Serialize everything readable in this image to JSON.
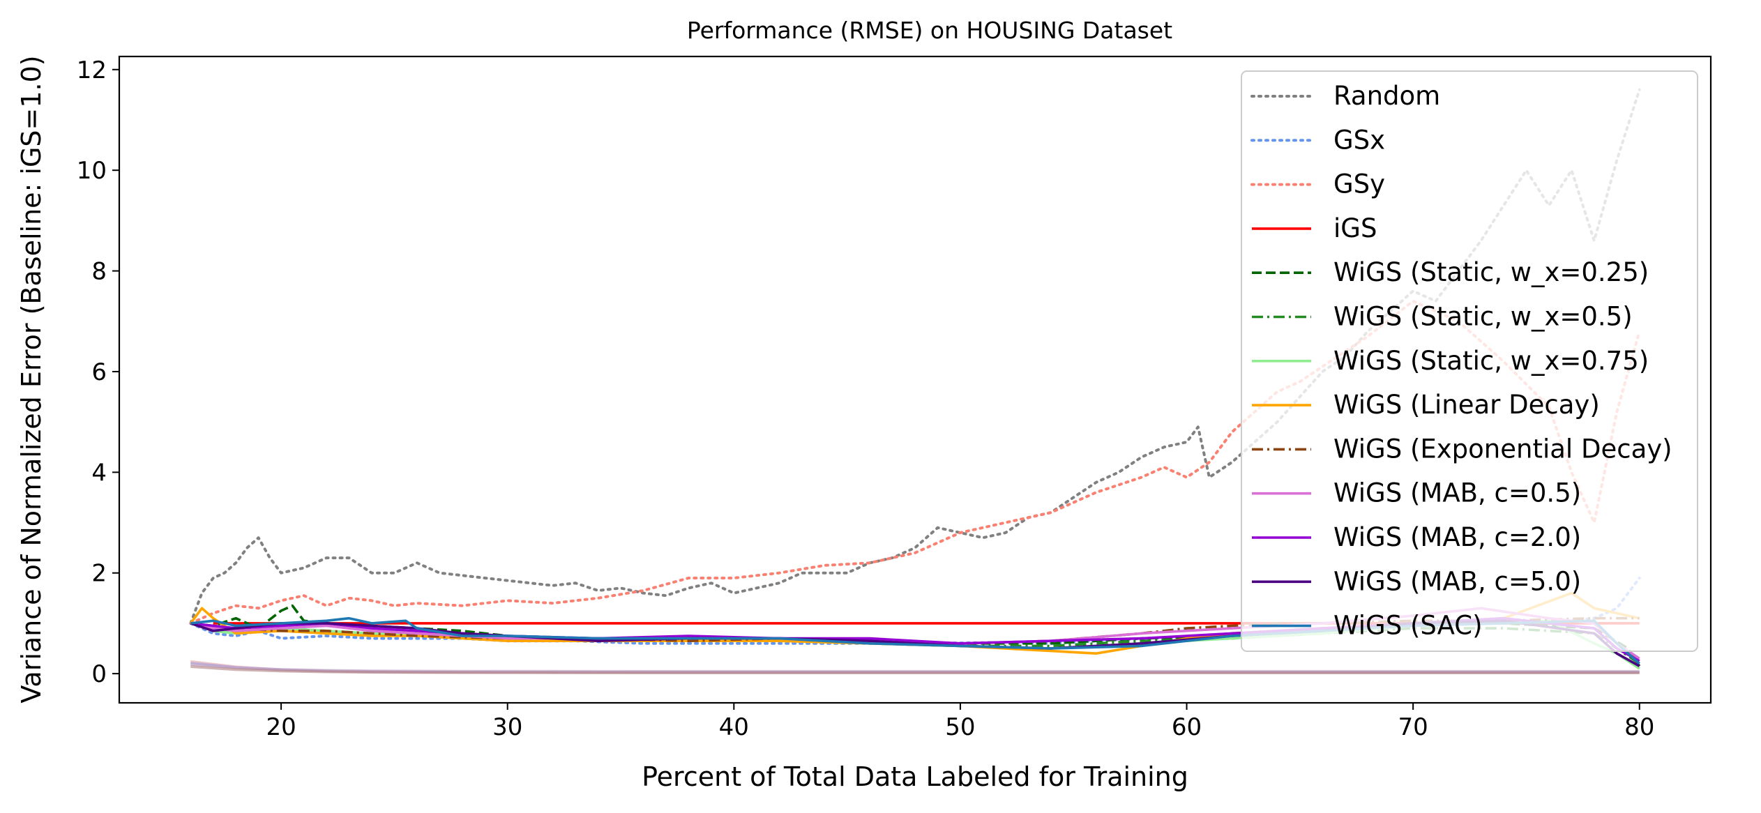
{
  "chart_data": {
    "type": "line",
    "title": "Performance (RMSE) on HOUSING Dataset",
    "xlabel": "Percent of Total Data Labeled for Training",
    "ylabel": "Variance of Normalized Error (Baseline: iGS=1.0)",
    "xlim": [
      12.85,
      83.15
    ],
    "ylim": [
      -0.58,
      12.26
    ],
    "xticks": [
      20,
      30,
      40,
      50,
      60,
      70,
      80
    ],
    "xtick_labels": [
      "20",
      "30",
      "40",
      "50",
      "60",
      "70",
      "80"
    ],
    "yticks": [
      0,
      2,
      4,
      6,
      8,
      10,
      12
    ],
    "ytick_labels": [
      "0",
      "2",
      "4",
      "6",
      "8",
      "10",
      "12"
    ],
    "grid": false,
    "legend_position": "upper right",
    "series": [
      {
        "name": "Random",
        "color": "#808080",
        "style": "dotted",
        "x": [
          16,
          16.5,
          17,
          17.5,
          18,
          18.5,
          19,
          19.5,
          20,
          21,
          22,
          23,
          24,
          25,
          26,
          27,
          28,
          29,
          30,
          31,
          32,
          33,
          34,
          35,
          36,
          37,
          38,
          39,
          40,
          41,
          42,
          43,
          44,
          45,
          46,
          47,
          48,
          49,
          50,
          51,
          52,
          53,
          54,
          55,
          56,
          57,
          58,
          59,
          60,
          60.5,
          61,
          62,
          63,
          64,
          65,
          66,
          67,
          68,
          69,
          70,
          71,
          72,
          73,
          74,
          75,
          76,
          77,
          78,
          79,
          80
        ],
        "y": [
          1.0,
          1.6,
          1.9,
          2.0,
          2.2,
          2.5,
          2.7,
          2.3,
          2.0,
          2.1,
          2.3,
          2.3,
          2.0,
          2.0,
          2.2,
          2.0,
          1.95,
          1.9,
          1.85,
          1.8,
          1.75,
          1.8,
          1.65,
          1.7,
          1.6,
          1.55,
          1.7,
          1.8,
          1.6,
          1.7,
          1.8,
          2.0,
          2.0,
          2.0,
          2.2,
          2.3,
          2.5,
          2.9,
          2.8,
          2.7,
          2.8,
          3.1,
          3.2,
          3.5,
          3.8,
          4.0,
          4.3,
          4.5,
          4.6,
          4.9,
          3.9,
          4.2,
          4.6,
          5.0,
          5.5,
          6.0,
          6.3,
          6.8,
          7.2,
          7.6,
          7.4,
          8.0,
          8.6,
          9.3,
          10.0,
          9.3,
          10.0,
          8.6,
          10.2,
          11.6
        ]
      },
      {
        "name": "GSx",
        "color": "#6495ED",
        "style": "dotted",
        "x": [
          16,
          17,
          18,
          19,
          20,
          22,
          24,
          26,
          28,
          30,
          33,
          36,
          40,
          44,
          48,
          52,
          54,
          56,
          58,
          60,
          62,
          64,
          66,
          68,
          70,
          72,
          74,
          76,
          78,
          79,
          80
        ],
        "y": [
          1.0,
          0.8,
          0.75,
          0.85,
          0.7,
          0.75,
          0.7,
          0.7,
          0.7,
          0.65,
          0.65,
          0.6,
          0.6,
          0.6,
          0.6,
          0.62,
          0.6,
          0.65,
          0.7,
          0.72,
          0.8,
          0.85,
          0.9,
          0.95,
          1.0,
          1.05,
          1.1,
          1.0,
          1.1,
          1.3,
          1.9
        ]
      },
      {
        "name": "GSy",
        "color": "#FA8072",
        "style": "dotted",
        "x": [
          16,
          17,
          18,
          19,
          20,
          21,
          22,
          23,
          24,
          25,
          26,
          28,
          30,
          32,
          34,
          36,
          38,
          40,
          42,
          44,
          46,
          48,
          50,
          52,
          54,
          56,
          58,
          59,
          60,
          61,
          62,
          63,
          64,
          65,
          66,
          68,
          70,
          72,
          74,
          76,
          77,
          78,
          79,
          80
        ],
        "y": [
          1.0,
          1.2,
          1.35,
          1.3,
          1.45,
          1.55,
          1.35,
          1.5,
          1.45,
          1.35,
          1.4,
          1.35,
          1.45,
          1.4,
          1.5,
          1.65,
          1.9,
          1.9,
          2.0,
          2.15,
          2.2,
          2.4,
          2.8,
          3.0,
          3.2,
          3.6,
          3.9,
          4.1,
          3.9,
          4.2,
          4.8,
          5.2,
          5.6,
          5.8,
          6.1,
          6.7,
          7.4,
          7.0,
          6.2,
          5.3,
          4.0,
          3.0,
          5.2,
          6.8
        ]
      },
      {
        "name": "iGS",
        "color": "#FF0000",
        "style": "solid",
        "x": [
          17,
          80
        ],
        "y": [
          1.0,
          1.0
        ]
      },
      {
        "name": "WiGS (Static, w_x=0.25)",
        "color": "#006400",
        "style": "dashed",
        "x": [
          16,
          17,
          18,
          19,
          20,
          20.5,
          21,
          22,
          24,
          26,
          28,
          30,
          34,
          38,
          42,
          46,
          50,
          54,
          58,
          62,
          66,
          70,
          74,
          78,
          79.5,
          80
        ],
        "y": [
          1.0,
          0.95,
          1.1,
          0.9,
          1.25,
          1.35,
          1.05,
          1.0,
          0.95,
          0.9,
          0.85,
          0.75,
          0.7,
          0.7,
          0.7,
          0.65,
          0.6,
          0.6,
          0.7,
          0.75,
          0.9,
          1.0,
          1.0,
          0.9,
          0.5,
          0.15
        ]
      },
      {
        "name": "WiGS (Static, w_x=0.5)",
        "color": "#228B22",
        "style": "dashdot",
        "x": [
          16,
          17,
          18,
          20,
          22,
          24,
          26,
          30,
          34,
          38,
          42,
          46,
          50,
          54,
          58,
          62,
          66,
          70,
          74,
          78,
          79,
          80
        ],
        "y": [
          1.0,
          0.9,
          0.8,
          0.9,
          0.85,
          0.8,
          0.8,
          0.7,
          0.7,
          0.65,
          0.7,
          0.6,
          0.55,
          0.55,
          0.65,
          0.7,
          0.8,
          0.9,
          0.9,
          0.8,
          0.5,
          0.2
        ]
      },
      {
        "name": "WiGS (Static, w_x=0.75)",
        "color": "#90EE90",
        "style": "solid",
        "x": [
          16,
          17,
          18,
          20,
          22,
          24,
          26,
          30,
          34,
          38,
          42,
          46,
          50,
          54,
          58,
          62,
          66,
          70,
          74,
          76,
          78,
          79,
          80
        ],
        "y": [
          1.0,
          0.85,
          0.8,
          0.9,
          0.85,
          0.8,
          0.75,
          0.7,
          0.65,
          0.65,
          0.65,
          0.6,
          0.55,
          0.5,
          0.6,
          0.7,
          0.8,
          0.95,
          1.0,
          1.05,
          0.6,
          0.4,
          0.1
        ]
      },
      {
        "name": "WiGS (Linear Decay)",
        "color": "#FFA500",
        "style": "solid",
        "x": [
          16,
          16.5,
          17,
          18,
          20,
          22,
          24,
          26,
          28,
          30,
          34,
          38,
          42,
          46,
          50,
          54,
          56,
          58,
          60,
          62,
          66,
          70,
          74,
          77,
          78,
          79,
          80
        ],
        "y": [
          1.0,
          1.3,
          1.1,
          0.8,
          0.85,
          0.8,
          0.75,
          0.75,
          0.7,
          0.65,
          0.65,
          0.65,
          0.65,
          0.6,
          0.55,
          0.45,
          0.4,
          0.55,
          0.7,
          0.8,
          0.9,
          1.0,
          1.1,
          1.6,
          1.3,
          1.2,
          1.1
        ]
      },
      {
        "name": "WiGS (Exponential Decay)",
        "color": "#8B4513",
        "style": "dashdot",
        "x": [
          16,
          17,
          18,
          20,
          22,
          24,
          26,
          30,
          34,
          38,
          42,
          46,
          50,
          54,
          58,
          60,
          62,
          64,
          66,
          70,
          74,
          78,
          80
        ],
        "y": [
          1.0,
          0.95,
          0.9,
          0.85,
          0.85,
          0.8,
          0.75,
          0.7,
          0.7,
          0.65,
          0.7,
          0.65,
          0.6,
          0.65,
          0.8,
          0.9,
          0.95,
          1.0,
          1.0,
          1.05,
          1.05,
          1.1,
          1.1
        ]
      },
      {
        "name": "WiGS (MAB, c=0.5)",
        "color": "#DA70D6",
        "style": "solid",
        "x": [
          16,
          17,
          18,
          20,
          22,
          24,
          26,
          30,
          34,
          38,
          42,
          46,
          50,
          54,
          58,
          62,
          66,
          70,
          73,
          76,
          78,
          79,
          80
        ],
        "y": [
          1.0,
          0.9,
          0.85,
          0.9,
          0.95,
          0.85,
          0.8,
          0.7,
          0.7,
          0.7,
          0.7,
          0.65,
          0.6,
          0.65,
          0.8,
          0.9,
          1.0,
          1.15,
          1.3,
          1.1,
          1.0,
          0.6,
          0.3
        ]
      },
      {
        "name": "WiGS (MAB, c=2.0)",
        "color": "#9400D3",
        "style": "solid",
        "x": [
          16,
          17,
          18,
          20,
          22,
          24,
          26,
          30,
          34,
          38,
          42,
          46,
          50,
          54,
          58,
          62,
          66,
          70,
          74,
          78,
          79,
          80
        ],
        "y": [
          1.0,
          0.95,
          0.9,
          0.95,
          1.0,
          0.9,
          0.85,
          0.75,
          0.7,
          0.75,
          0.7,
          0.7,
          0.6,
          0.65,
          0.7,
          0.8,
          0.9,
          1.0,
          1.1,
          0.9,
          0.5,
          0.25
        ]
      },
      {
        "name": "WiGS (MAB, c=5.0)",
        "color": "#4B0082",
        "style": "solid",
        "x": [
          16,
          17,
          18,
          20,
          22,
          24,
          26,
          28,
          30,
          34,
          38,
          42,
          46,
          50,
          54,
          58,
          62,
          66,
          70,
          74,
          78,
          79,
          80
        ],
        "y": [
          1.0,
          0.85,
          0.9,
          1.0,
          1.0,
          0.95,
          0.9,
          0.8,
          0.75,
          0.65,
          0.7,
          0.7,
          0.65,
          0.55,
          0.5,
          0.6,
          0.75,
          0.85,
          1.0,
          1.05,
          0.8,
          0.4,
          0.15
        ]
      },
      {
        "name": "WiGS (SAC)",
        "color": "#1F77B4",
        "style": "solid",
        "x": [
          16,
          17,
          18,
          20,
          22,
          23,
          24,
          25.5,
          26,
          28,
          30,
          34,
          38,
          42,
          46,
          50,
          54,
          58,
          62,
          66,
          70,
          74,
          78,
          79,
          80
        ],
        "y": [
          1.0,
          1.05,
          0.95,
          1.0,
          1.05,
          1.1,
          1.0,
          1.05,
          0.9,
          0.75,
          0.75,
          0.7,
          0.7,
          0.7,
          0.6,
          0.55,
          0.5,
          0.55,
          0.75,
          0.85,
          0.95,
          1.0,
          1.05,
          0.6,
          0.2
        ]
      }
    ]
  }
}
